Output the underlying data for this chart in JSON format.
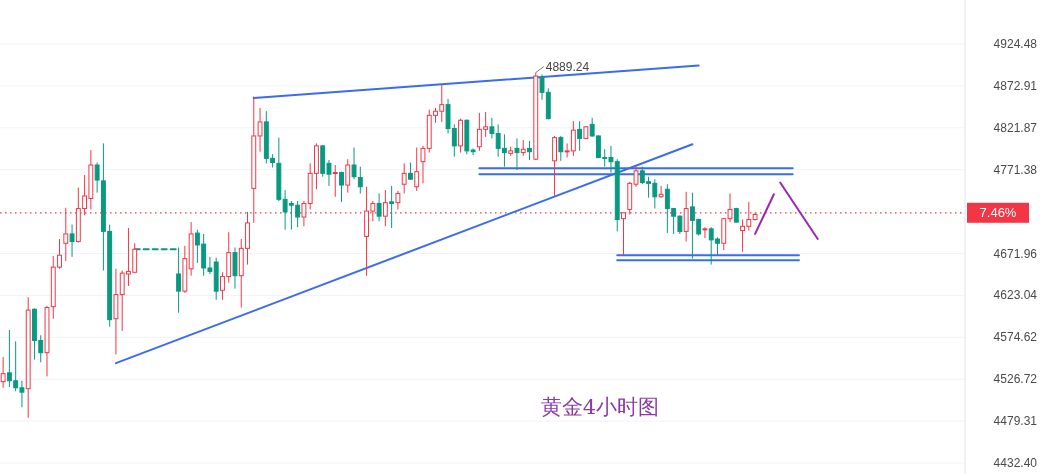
{
  "chart_data": {
    "type": "candlestick",
    "categories": [
      null,
      null,
      null,
      null,
      null,
      null,
      null,
      null,
      null,
      null,
      null,
      null,
      null,
      null,
      null,
      null,
      null,
      null,
      null,
      null,
      null,
      null,
      null,
      null,
      null,
      null,
      null,
      null,
      null,
      null,
      null,
      null,
      null,
      null,
      null,
      null,
      null,
      null,
      null,
      null,
      null,
      null,
      null,
      null,
      null,
      null,
      null,
      null,
      null,
      null,
      null,
      null,
      null,
      null,
      null,
      null,
      null,
      null,
      null,
      null,
      null,
      null,
      null,
      null,
      null,
      null,
      null,
      null,
      null,
      null,
      null,
      null,
      null,
      null,
      null,
      null,
      null,
      null,
      null,
      null,
      null,
      null,
      null,
      null,
      null,
      null,
      null,
      null,
      null,
      null,
      null,
      null,
      null,
      null,
      null,
      null,
      null,
      null,
      null,
      null,
      null,
      null,
      null,
      null,
      null,
      null,
      null,
      null,
      null,
      null,
      null,
      null,
      null,
      null,
      null,
      null,
      null,
      null,
      null,
      null,
      null,
      null,
      null,
      null,
      null,
      null,
      null,
      null,
      null,
      null,
      null,
      null,
      null,
      null,
      null,
      null,
      null,
      null,
      null,
      null,
      null,
      null,
      null,
      null,
      null,
      null,
      null,
      null,
      null,
      null,
      null,
      null,
      null,
      null
    ],
    "ohlc": [
      [
        4524,
        4552,
        4517,
        4533
      ],
      [
        4534,
        4583,
        4518,
        4525
      ],
      [
        4525,
        4570,
        4513,
        4517
      ],
      [
        4517,
        4525,
        4495,
        4512
      ],
      [
        4516,
        4621,
        4483,
        4606
      ],
      [
        4607,
        4608,
        4549,
        4571
      ],
      [
        4571,
        4577,
        4546,
        4557
      ],
      [
        4557,
        4611,
        4530,
        4609
      ],
      [
        4610,
        4669,
        4596,
        4656
      ],
      [
        4656,
        4689,
        4654,
        4670
      ],
      [
        4684,
        4726,
        4663,
        4695
      ],
      [
        4695,
        4706,
        4668,
        4686
      ],
      [
        4686,
        4750,
        4685,
        4725
      ],
      [
        4725,
        4765,
        4717,
        4740
      ],
      [
        4737,
        4795,
        4724,
        4777
      ],
      [
        4777,
        4780,
        4744,
        4759
      ],
      [
        4758,
        4803,
        4652,
        4698
      ],
      [
        4698,
        4706,
        4587,
        4595
      ],
      [
        4596,
        4654,
        4555,
        4624
      ],
      [
        4624,
        4652,
        4582,
        4649
      ],
      [
        4648,
        4702,
        4634,
        4651
      ],
      [
        4650,
        4684,
        4649,
        4677
      ],
      null,
      null,
      null,
      null,
      null,
      null,
      [
        4648,
        4679,
        4603,
        4628
      ],
      [
        4628,
        4681,
        4626,
        4666
      ],
      [
        4654,
        4709,
        4646,
        4695
      ],
      [
        4696,
        4700,
        4661,
        4682
      ],
      [
        4683,
        4695,
        4646,
        4655
      ],
      [
        4655,
        4668,
        4648,
        4651
      ],
      [
        4662,
        4667,
        4618,
        4628
      ],
      [
        4629,
        4650,
        4618,
        4645
      ],
      [
        4645,
        4697,
        4638,
        4673
      ],
      [
        4673,
        4679,
        4631,
        4646
      ],
      [
        4646,
        4689,
        4609,
        4678
      ],
      [
        4678,
        4721,
        4659,
        4708
      ],
      [
        4749,
        4860,
        4708,
        4812
      ],
      [
        4812,
        4846,
        4793,
        4829
      ],
      [
        4829,
        4842,
        4779,
        4785
      ],
      [
        4785,
        4790,
        4774,
        4780
      ],
      [
        4779,
        4810,
        4734,
        4736
      ],
      [
        4736,
        4747,
        4700,
        4721
      ],
      [
        4731,
        4734,
        4700,
        4729
      ],
      [
        4729,
        4734,
        4703,
        4715
      ],
      [
        4715,
        4734,
        4704,
        4731
      ],
      [
        4731,
        4779,
        4724,
        4767
      ],
      [
        4767,
        4803,
        4748,
        4800
      ],
      [
        4800,
        4801,
        4763,
        4767
      ],
      [
        4779,
        4783,
        4752,
        4766
      ],
      [
        4767,
        4777,
        4739,
        4768
      ],
      [
        4768,
        4769,
        4733,
        4753
      ],
      [
        4753,
        4784,
        4744,
        4777
      ],
      [
        4777,
        4798,
        4760,
        4763
      ],
      [
        4762,
        4775,
        4743,
        4751
      ],
      [
        4692,
        4751,
        4646,
        4722
      ],
      [
        4722,
        4734,
        4710,
        4731
      ],
      [
        4731,
        4743,
        4710,
        4716
      ],
      [
        4716,
        4747,
        4704,
        4732
      ],
      [
        4733,
        4752,
        4702,
        4731
      ],
      [
        4732,
        4746,
        4724,
        4743
      ],
      [
        4754,
        4779,
        4743,
        4767
      ],
      [
        4767,
        4780,
        4759,
        4760
      ],
      [
        4751,
        4798,
        4746,
        4769
      ],
      [
        4781,
        4800,
        4755,
        4797
      ],
      [
        4797,
        4844,
        4792,
        4837
      ],
      [
        4837,
        4846,
        4828,
        4842
      ],
      [
        4842,
        4875,
        4829,
        4850
      ],
      [
        4850,
        4857,
        4815,
        4821
      ],
      [
        4821,
        4826,
        4787,
        4800
      ],
      [
        4800,
        4833,
        4792,
        4831
      ],
      [
        4831,
        4832,
        4790,
        4794
      ],
      [
        4795,
        4797,
        4789,
        4793
      ],
      [
        4799,
        4840,
        4794,
        4820
      ],
      [
        4820,
        4841,
        4811,
        4823
      ],
      [
        4823,
        4834,
        4809,
        4815
      ],
      [
        4815,
        4826,
        4787,
        4797
      ],
      [
        4797,
        4814,
        4775,
        4792
      ],
      [
        4791,
        4799,
        4788,
        4794
      ],
      [
        4797,
        4809,
        4771,
        4792
      ],
      [
        4792,
        4807,
        4788,
        4796
      ],
      [
        4797,
        4806,
        4783,
        4793
      ],
      [
        4784,
        4889.24,
        4783,
        4885
      ],
      [
        4883,
        4887,
        4856,
        4865
      ],
      [
        4865,
        4870,
        4832,
        4833
      ],
      [
        4782,
        4812,
        4740,
        4810
      ],
      [
        4810,
        4812,
        4782,
        4793
      ],
      [
        4793,
        4803,
        4786,
        4794
      ],
      [
        4794,
        4830,
        4788,
        4819
      ],
      [
        4820,
        4830,
        4794,
        4809
      ],
      [
        4809,
        4824,
        4808,
        4823
      ],
      [
        4826,
        4834,
        4811,
        4812
      ],
      [
        4812,
        4813,
        4785,
        4786
      ],
      [
        4786,
        4796,
        4775,
        4785
      ],
      [
        4786,
        4800,
        4768,
        4781
      ],
      [
        4781,
        4784,
        4698,
        4712
      ],
      [
        4713,
        4720,
        4669,
        4720
      ],
      [
        4724,
        4757,
        4718,
        4755
      ],
      [
        4754,
        4775,
        4751,
        4770
      ],
      [
        4770,
        4775,
        4754,
        4756
      ],
      [
        4757,
        4763,
        4738,
        4755
      ],
      [
        4755,
        4760,
        4725,
        4739
      ],
      [
        4739,
        4752,
        4738,
        4742
      ],
      [
        4748,
        4754,
        4696,
        4725
      ],
      [
        4725,
        4726,
        4695,
        4716
      ],
      [
        4716,
        4717,
        4695,
        4698
      ],
      [
        4698,
        4745,
        4686,
        4725
      ],
      [
        4727,
        4744,
        4666,
        4711
      ],
      [
        4712,
        4713,
        4693,
        4695
      ],
      [
        4700,
        4703,
        4690,
        4701
      ],
      [
        4701,
        4703,
        4659,
        4688
      ],
      [
        4689,
        4691,
        4670,
        4684
      ],
      [
        4684,
        4714,
        4676,
        4713
      ],
      [
        4713,
        4743,
        4709,
        4724
      ],
      [
        4725,
        4726,
        4708,
        4709
      ],
      [
        4699,
        4712,
        4674,
        4704
      ],
      [
        4704,
        4733,
        4699,
        4712
      ],
      [
        4712,
        4720,
        4711,
        4718
      ],
      null,
      null,
      null,
      null,
      null,
      null,
      null,
      null,
      null,
      null,
      null,
      null,
      null,
      null,
      null,
      null,
      null,
      null,
      null,
      null,
      null,
      null,
      null,
      null,
      null,
      null,
      null,
      null,
      null,
      null,
      null,
      null,
      null
    ],
    "series": [
      {
        "type": "line",
        "color": "#3b6cf0",
        "values": [
          null,
          null,
          null,
          null,
          null,
          null,
          null,
          null,
          null,
          null,
          null,
          null,
          null,
          null,
          null,
          null,
          null,
          null,
          null,
          null,
          null,
          null,
          null,
          null,
          null,
          null,
          null,
          null,
          null,
          null,
          null,
          null,
          null,
          null,
          null,
          null,
          null,
          null,
          null,
          null,
          4858,
          null,
          null,
          null,
          null,
          null,
          null,
          null,
          null,
          null,
          null,
          null,
          null,
          null,
          null,
          null,
          null,
          null,
          null,
          null,
          null,
          null,
          null,
          null,
          null,
          null,
          null,
          null,
          null,
          null,
          null,
          null,
          null,
          null,
          null,
          null,
          null,
          null,
          null,
          null,
          null,
          null,
          null,
          null,
          null,
          null,
          null,
          null,
          null,
          null,
          null,
          null,
          null,
          null,
          null,
          null,
          null,
          null,
          null,
          null,
          null,
          null,
          null,
          null,
          null,
          null,
          null,
          null,
          null,
          null,
          null,
          4898,
          null,
          null,
          null,
          null,
          null,
          null,
          null,
          null,
          null,
          null,
          null,
          null,
          null,
          null,
          null,
          null,
          null,
          null,
          null,
          null,
          null,
          null,
          null,
          null,
          null,
          null,
          null,
          null,
          null,
          null,
          null,
          null,
          null,
          null,
          null,
          null,
          null,
          null,
          null,
          null,
          null,
          null
        ]
      },
      {
        "type": "line",
        "color": "#3b6cf0",
        "values": [
          null,
          null,
          null,
          null,
          null,
          null,
          null,
          null,
          null,
          null,
          null,
          null,
          null,
          null,
          null,
          null,
          null,
          null,
          4545,
          null,
          null,
          null,
          null,
          null,
          null,
          null,
          null,
          null,
          null,
          null,
          null,
          null,
          null,
          null,
          null,
          null,
          null,
          null,
          null,
          null,
          null,
          null,
          null,
          null,
          null,
          null,
          null,
          null,
          null,
          null,
          null,
          null,
          null,
          null,
          null,
          null,
          null,
          null,
          null,
          null,
          null,
          null,
          null,
          null,
          null,
          null,
          null,
          null,
          null,
          null,
          null,
          null,
          null,
          null,
          null,
          null,
          null,
          null,
          null,
          null,
          null,
          null,
          null,
          null,
          null,
          null,
          null,
          null,
          null,
          null,
          null,
          null,
          null,
          null,
          null,
          null,
          null,
          null,
          null,
          null,
          null,
          null,
          null,
          null,
          null,
          null,
          null,
          null,
          null,
          null,
          4802,
          null,
          null,
          null,
          null,
          null,
          null,
          null,
          null,
          null,
          null,
          null,
          null,
          null,
          null,
          null,
          null,
          null,
          null,
          null,
          null,
          null,
          null,
          null,
          null,
          null,
          null,
          null,
          null,
          null,
          null,
          null,
          null,
          null,
          null,
          null,
          null,
          null,
          null,
          null,
          null,
          null,
          null,
          null
        ]
      },
      {
        "type": "line",
        "color": "#3b6cf0",
        "values": [
          null,
          null,
          null,
          null,
          null,
          null,
          null,
          null,
          null,
          null,
          null,
          null,
          null,
          null,
          null,
          null,
          null,
          null,
          null,
          null,
          null,
          null,
          null,
          null,
          null,
          null,
          null,
          null,
          null,
          null,
          null,
          null,
          null,
          null,
          null,
          null,
          null,
          null,
          null,
          null,
          null,
          null,
          null,
          null,
          null,
          null,
          null,
          null,
          null,
          null,
          null,
          null,
          null,
          null,
          null,
          null,
          null,
          null,
          null,
          null,
          null,
          null,
          null,
          null,
          null,
          null,
          null,
          null,
          null,
          null,
          null,
          null,
          null,
          null,
          null,
          null,
          4766,
          null,
          null,
          null,
          null,
          null,
          null,
          null,
          null,
          null,
          null,
          null,
          null,
          null,
          null,
          null,
          null,
          null,
          null,
          null,
          null,
          null,
          null,
          null,
          null,
          null,
          null,
          null,
          null,
          null,
          null,
          null,
          null,
          null,
          null,
          null,
          null,
          null,
          null,
          null,
          null,
          null,
          null,
          null,
          null,
          null,
          null,
          null,
          null,
          null,
          4766,
          null,
          null,
          null,
          null,
          null,
          null,
          null,
          null,
          null,
          null,
          null,
          null,
          null,
          null,
          null,
          null,
          null,
          null,
          null,
          null,
          null,
          null,
          null,
          null,
          null,
          null,
          null
        ]
      },
      {
        "type": "line",
        "color": "#3b6cf0",
        "values": [
          null,
          null,
          null,
          null,
          null,
          null,
          null,
          null,
          null,
          null,
          null,
          null,
          null,
          null,
          null,
          null,
          null,
          null,
          null,
          null,
          null,
          null,
          null,
          null,
          null,
          null,
          null,
          null,
          null,
          null,
          null,
          null,
          null,
          null,
          null,
          null,
          null,
          null,
          null,
          null,
          null,
          null,
          null,
          null,
          null,
          null,
          null,
          null,
          null,
          null,
          null,
          null,
          null,
          null,
          null,
          null,
          null,
          null,
          null,
          null,
          null,
          null,
          null,
          null,
          null,
          null,
          null,
          null,
          null,
          null,
          null,
          null,
          null,
          null,
          null,
          null,
          4773,
          null,
          null,
          null,
          null,
          null,
          null,
          null,
          null,
          null,
          null,
          null,
          null,
          null,
          null,
          null,
          null,
          null,
          null,
          null,
          null,
          null,
          null,
          null,
          null,
          null,
          null,
          null,
          null,
          null,
          null,
          null,
          null,
          null,
          null,
          null,
          null,
          null,
          null,
          null,
          null,
          null,
          null,
          null,
          null,
          null,
          null,
          null,
          null,
          null,
          4773,
          null,
          null,
          null,
          null,
          null,
          null,
          null,
          null,
          null,
          null,
          null,
          null,
          null,
          null,
          null,
          null,
          null,
          null,
          null,
          null,
          null,
          null,
          null,
          null,
          null,
          null,
          null
        ]
      },
      {
        "type": "line",
        "color": "#3b6cf0",
        "values": [
          null,
          null,
          null,
          null,
          null,
          null,
          null,
          null,
          null,
          null,
          null,
          null,
          null,
          null,
          null,
          null,
          null,
          null,
          null,
          null,
          null,
          null,
          null,
          null,
          null,
          null,
          null,
          null,
          null,
          null,
          null,
          null,
          null,
          null,
          null,
          null,
          null,
          null,
          null,
          null,
          null,
          null,
          null,
          null,
          null,
          null,
          null,
          null,
          null,
          null,
          null,
          null,
          null,
          null,
          null,
          null,
          null,
          null,
          null,
          null,
          null,
          null,
          null,
          null,
          null,
          null,
          null,
          null,
          null,
          null,
          null,
          null,
          null,
          null,
          null,
          null,
          null,
          null,
          null,
          null,
          null,
          null,
          null,
          null,
          null,
          null,
          null,
          null,
          null,
          null,
          null,
          null,
          null,
          null,
          null,
          null,
          null,
          null,
          4664,
          null,
          null,
          null,
          null,
          null,
          null,
          null,
          null,
          null,
          null,
          null,
          null,
          null,
          null,
          null,
          null,
          null,
          null,
          null,
          null,
          null,
          null,
          null,
          null,
          null,
          null,
          null,
          null,
          4664,
          null,
          null,
          null,
          null,
          null,
          null,
          null,
          null,
          null,
          null,
          null,
          null,
          null,
          null,
          null,
          null,
          null,
          null,
          null,
          null,
          null,
          null,
          null,
          null,
          null,
          null
        ]
      },
      {
        "type": "line",
        "color": "#3b6cf0",
        "values": [
          null,
          null,
          null,
          null,
          null,
          null,
          null,
          null,
          null,
          null,
          null,
          null,
          null,
          null,
          null,
          null,
          null,
          null,
          null,
          null,
          null,
          null,
          null,
          null,
          null,
          null,
          null,
          null,
          null,
          null,
          null,
          null,
          null,
          null,
          null,
          null,
          null,
          null,
          null,
          null,
          null,
          null,
          null,
          null,
          null,
          null,
          null,
          null,
          null,
          null,
          null,
          null,
          null,
          null,
          null,
          null,
          null,
          null,
          null,
          null,
          null,
          null,
          null,
          null,
          null,
          null,
          null,
          null,
          null,
          null,
          null,
          null,
          null,
          null,
          null,
          null,
          null,
          null,
          null,
          null,
          null,
          null,
          null,
          null,
          null,
          null,
          null,
          null,
          null,
          null,
          null,
          null,
          null,
          null,
          null,
          null,
          null,
          null,
          4670,
          null,
          null,
          null,
          null,
          null,
          null,
          null,
          null,
          null,
          null,
          null,
          null,
          null,
          null,
          null,
          null,
          null,
          null,
          null,
          null,
          null,
          null,
          null,
          null,
          null,
          null,
          null,
          null,
          4670,
          null,
          null,
          null,
          null,
          null,
          null,
          null,
          null,
          null,
          null,
          null,
          null,
          null,
          null,
          null,
          null,
          null,
          null,
          null,
          null,
          null,
          null,
          null,
          null,
          null,
          null
        ]
      },
      {
        "type": "line",
        "color": "#089981",
        "line_style": "dashed",
        "values": [
          null,
          null,
          null,
          null,
          null,
          null,
          null,
          null,
          null,
          null,
          null,
          null,
          null,
          null,
          null,
          null,
          null,
          null,
          null,
          null,
          null,
          4677,
          null,
          null,
          null,
          null,
          null,
          null,
          4677,
          null,
          null,
          null,
          null,
          null,
          null,
          null,
          null,
          null,
          null,
          null,
          null,
          null,
          null,
          null,
          null,
          null,
          null,
          null,
          null,
          null,
          null,
          null,
          null,
          null,
          null,
          null,
          null,
          null,
          null,
          null,
          null,
          null,
          null,
          null,
          null,
          null,
          null,
          null,
          null,
          null,
          null,
          null,
          null,
          null,
          null,
          null,
          null,
          null,
          null,
          null,
          null,
          null,
          null,
          null,
          null,
          null,
          null,
          null,
          null,
          null,
          null,
          null,
          null,
          null,
          null,
          null,
          null,
          null,
          null,
          null,
          null,
          null,
          null,
          null,
          null,
          null,
          null,
          null,
          null,
          null,
          null,
          null,
          null,
          null,
          null,
          null,
          null,
          null,
          null,
          null,
          null,
          null,
          null,
          null,
          null,
          null,
          null,
          null,
          null,
          null,
          null,
          null,
          null,
          null,
          null,
          null,
          null,
          null,
          null,
          null,
          null,
          null,
          null,
          null,
          null,
          null,
          null,
          null,
          null,
          null,
          null,
          null,
          null,
          null
        ]
      },
      {
        "type": "line",
        "color": "#9c27b0",
        "values": [
          null,
          null,
          null,
          null,
          null,
          null,
          null,
          null,
          null,
          null,
          null,
          null,
          null,
          null,
          null,
          null,
          null,
          null,
          null,
          null,
          null,
          null,
          null,
          null,
          null,
          null,
          null,
          null,
          null,
          null,
          null,
          null,
          null,
          null,
          null,
          null,
          null,
          null,
          null,
          null,
          null,
          null,
          null,
          null,
          null,
          null,
          null,
          null,
          null,
          null,
          null,
          null,
          null,
          null,
          null,
          null,
          null,
          null,
          null,
          null,
          null,
          null,
          null,
          null,
          null,
          null,
          null,
          null,
          null,
          null,
          null,
          null,
          null,
          null,
          null,
          null,
          null,
          null,
          null,
          null,
          null,
          null,
          null,
          null,
          null,
          null,
          null,
          null,
          null,
          null,
          null,
          null,
          null,
          null,
          null,
          null,
          null,
          null,
          null,
          null,
          null,
          null,
          null,
          null,
          null,
          null,
          null,
          null,
          null,
          null,
          null,
          null,
          null,
          null,
          null,
          null,
          null,
          null,
          null,
          null,
          4695,
          null,
          null,
          4742,
          null,
          null,
          null,
          null,
          null,
          null,
          null,
          null,
          null,
          null,
          null,
          null,
          null,
          null,
          null,
          null,
          null,
          null,
          null,
          null,
          null,
          null,
          null,
          null,
          null,
          null,
          null,
          null,
          null,
          null
        ]
      },
      {
        "type": "line",
        "color": "#9c27b0",
        "values": [
          null,
          null,
          null,
          null,
          null,
          null,
          null,
          null,
          null,
          null,
          null,
          null,
          null,
          null,
          null,
          null,
          null,
          null,
          null,
          null,
          null,
          null,
          null,
          null,
          null,
          null,
          null,
          null,
          null,
          null,
          null,
          null,
          null,
          null,
          null,
          null,
          null,
          null,
          null,
          null,
          null,
          null,
          null,
          null,
          null,
          null,
          null,
          null,
          null,
          null,
          null,
          null,
          null,
          null,
          null,
          null,
          null,
          null,
          null,
          null,
          null,
          null,
          null,
          null,
          null,
          null,
          null,
          null,
          null,
          null,
          null,
          null,
          null,
          null,
          null,
          null,
          null,
          null,
          null,
          null,
          null,
          null,
          null,
          null,
          null,
          null,
          null,
          null,
          null,
          null,
          null,
          null,
          null,
          null,
          null,
          null,
          null,
          null,
          null,
          null,
          null,
          null,
          null,
          null,
          null,
          null,
          null,
          null,
          null,
          null,
          null,
          null,
          null,
          null,
          null,
          null,
          null,
          null,
          null,
          null,
          null,
          null,
          null,
          null,
          4756,
          null,
          null,
          null,
          null,
          null,
          4689,
          null,
          null,
          null,
          null,
          null,
          null,
          null,
          null,
          null,
          null,
          null,
          null,
          null,
          null,
          null,
          null,
          null,
          null,
          null,
          null,
          null,
          null,
          null
        ]
      }
    ],
    "ylim": [
      4420.2,
      4979.2
    ],
    "log": true,
    "yticks": [
      4924.48,
      4872.91,
      4821.87,
      4771.38,
      4671.96,
      4623.04,
      4574.62,
      4526.72,
      4479.31,
      {
        "value": 4432.4,
        "label": "4432.40"
      }
    ],
    "grid": "y",
    "tick_labels": "y",
    "ref_lines": [
      {
        "axis": "y",
        "value": 4720,
        "color": "#f23645",
        "line_style": "dotted"
      }
    ],
    "annotations": [
      {
        "text": "4889.24",
        "y": 4889.24
      },
      "7.46%",
      "黄金4小时图"
    ]
  }
}
